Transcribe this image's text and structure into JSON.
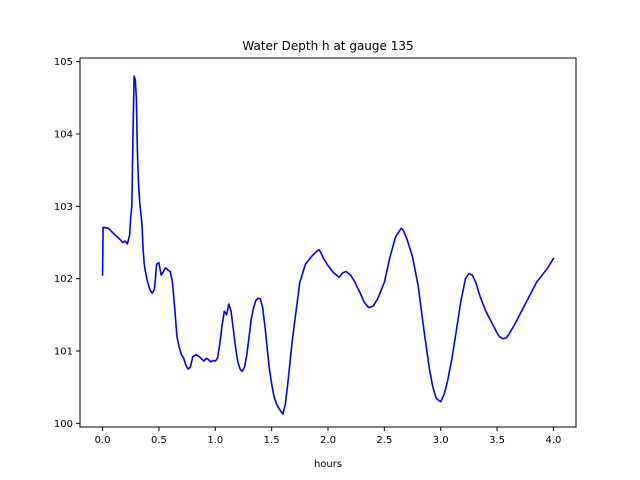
{
  "chart_data": {
    "type": "line",
    "title": "Water Depth h at gauge 135",
    "xlabel": "hours",
    "ylabel": "",
    "xlim": [
      -0.2,
      4.2
    ],
    "ylim": [
      99.95,
      105.05
    ],
    "xticks": [
      0.0,
      0.5,
      1.0,
      1.5,
      2.0,
      2.5,
      3.0,
      3.5,
      4.0
    ],
    "xtick_labels": [
      "0.0",
      "0.5",
      "1.0",
      "1.5",
      "2.0",
      "2.5",
      "3.0",
      "3.5",
      "4.0"
    ],
    "yticks": [
      100,
      101,
      102,
      103,
      104,
      105
    ],
    "ytick_labels": [
      "100",
      "101",
      "102",
      "103",
      "104",
      "105"
    ],
    "grid": false,
    "series": [
      {
        "color": "#0000ff",
        "x": [
          0.0,
          0.005,
          0.05,
          0.1,
          0.15,
          0.18,
          0.2,
          0.22,
          0.24,
          0.25,
          0.26,
          0.27,
          0.28,
          0.29,
          0.3,
          0.31,
          0.32,
          0.33,
          0.34,
          0.35,
          0.36,
          0.37,
          0.38,
          0.4,
          0.42,
          0.44,
          0.46,
          0.48,
          0.5,
          0.52,
          0.54,
          0.56,
          0.58,
          0.6,
          0.62,
          0.64,
          0.66,
          0.68,
          0.7,
          0.72,
          0.74,
          0.76,
          0.78,
          0.8,
          0.83,
          0.86,
          0.9,
          0.92,
          0.94,
          0.96,
          0.98,
          1.0,
          1.02,
          1.04,
          1.06,
          1.08,
          1.1,
          1.12,
          1.14,
          1.16,
          1.18,
          1.2,
          1.22,
          1.24,
          1.26,
          1.28,
          1.3,
          1.32,
          1.34,
          1.36,
          1.38,
          1.4,
          1.42,
          1.44,
          1.46,
          1.48,
          1.5,
          1.52,
          1.54,
          1.56,
          1.58,
          1.6,
          1.62,
          1.64,
          1.66,
          1.68,
          1.7,
          1.75,
          1.8,
          1.85,
          1.9,
          1.92,
          1.94,
          1.96,
          2.0,
          2.05,
          2.1,
          2.13,
          2.16,
          2.2,
          2.22,
          2.24,
          2.26,
          2.28,
          2.3,
          2.32,
          2.36,
          2.4,
          2.44,
          2.5,
          2.55,
          2.6,
          2.63,
          2.65,
          2.67,
          2.7,
          2.75,
          2.8,
          2.85,
          2.9,
          2.93,
          2.96,
          2.98,
          3.0,
          3.03,
          3.06,
          3.1,
          3.14,
          3.18,
          3.22,
          3.25,
          3.28,
          3.31,
          3.35,
          3.4,
          3.45,
          3.5,
          3.52,
          3.55,
          3.58,
          3.6,
          3.65,
          3.7,
          3.75,
          3.8,
          3.85,
          3.9,
          3.95,
          4.0
        ],
        "y": [
          102.05,
          102.71,
          102.7,
          102.62,
          102.55,
          102.5,
          102.52,
          102.48,
          102.6,
          102.85,
          103.0,
          104.0,
          104.8,
          104.75,
          104.5,
          103.7,
          103.3,
          103.05,
          102.9,
          102.75,
          102.4,
          102.2,
          102.1,
          101.95,
          101.85,
          101.8,
          101.85,
          102.2,
          102.22,
          102.05,
          102.1,
          102.15,
          102.12,
          102.1,
          101.95,
          101.6,
          101.2,
          101.05,
          100.95,
          100.9,
          100.8,
          100.75,
          100.78,
          100.92,
          100.95,
          100.92,
          100.86,
          100.9,
          100.88,
          100.85,
          100.87,
          100.86,
          100.9,
          101.1,
          101.35,
          101.55,
          101.5,
          101.65,
          101.55,
          101.3,
          101.05,
          100.85,
          100.75,
          100.72,
          100.78,
          100.95,
          101.2,
          101.45,
          101.6,
          101.7,
          101.73,
          101.72,
          101.6,
          101.35,
          101.05,
          100.75,
          100.55,
          100.38,
          100.28,
          100.22,
          100.17,
          100.13,
          100.25,
          100.5,
          100.8,
          101.1,
          101.35,
          101.95,
          102.2,
          102.3,
          102.38,
          102.4,
          102.35,
          102.28,
          102.18,
          102.08,
          102.02,
          102.08,
          102.1,
          102.05,
          102.0,
          101.95,
          101.88,
          101.82,
          101.75,
          101.68,
          101.6,
          101.62,
          101.72,
          101.95,
          102.3,
          102.58,
          102.65,
          102.7,
          102.66,
          102.55,
          102.3,
          101.9,
          101.3,
          100.75,
          100.5,
          100.35,
          100.32,
          100.3,
          100.4,
          100.58,
          100.9,
          101.3,
          101.7,
          102.0,
          102.07,
          102.05,
          101.95,
          101.75,
          101.55,
          101.4,
          101.25,
          101.2,
          101.17,
          101.18,
          101.22,
          101.35,
          101.5,
          101.65,
          101.8,
          101.95,
          102.05,
          102.15,
          102.28
        ]
      }
    ]
  }
}
